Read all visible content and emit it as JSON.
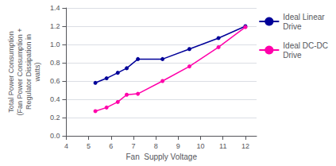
{
  "chart_data": {
    "type": "line",
    "xlabel": "Fan  Supply Voltage",
    "ylabel": "Total Power Consumption\n(Fan Power Consumption +\nRegulator Dissipation in\nwatts)",
    "x": [
      5.3,
      5.8,
      6.3,
      6.7,
      7.2,
      8.3,
      9.5,
      10.8,
      12.0
    ],
    "series": [
      {
        "name": "Ideal Linear\nDrive",
        "color": "#000099",
        "marker": "circle",
        "values": [
          0.58,
          0.63,
          0.69,
          0.74,
          0.84,
          0.84,
          0.95,
          1.07,
          1.2
        ]
      },
      {
        "name": "Ideal DC-DC\nDrive",
        "color": "#FF00AA",
        "marker": "circle",
        "values": [
          0.27,
          0.31,
          0.37,
          0.45,
          0.46,
          0.6,
          0.76,
          0.97,
          1.19
        ]
      }
    ],
    "xlim": [
      4,
      12.5
    ],
    "ylim": [
      0,
      1.4
    ],
    "xticks": [
      4,
      5,
      6,
      7,
      8,
      9,
      10,
      11,
      12
    ],
    "yticks": [
      {
        "value": 0,
        "label": "0.0"
      },
      0.2,
      0.4,
      0.6,
      0.8,
      {
        "value": 1.0,
        "label": "1.0"
      },
      1.2,
      1.4
    ],
    "grid": true,
    "legend": "right"
  }
}
